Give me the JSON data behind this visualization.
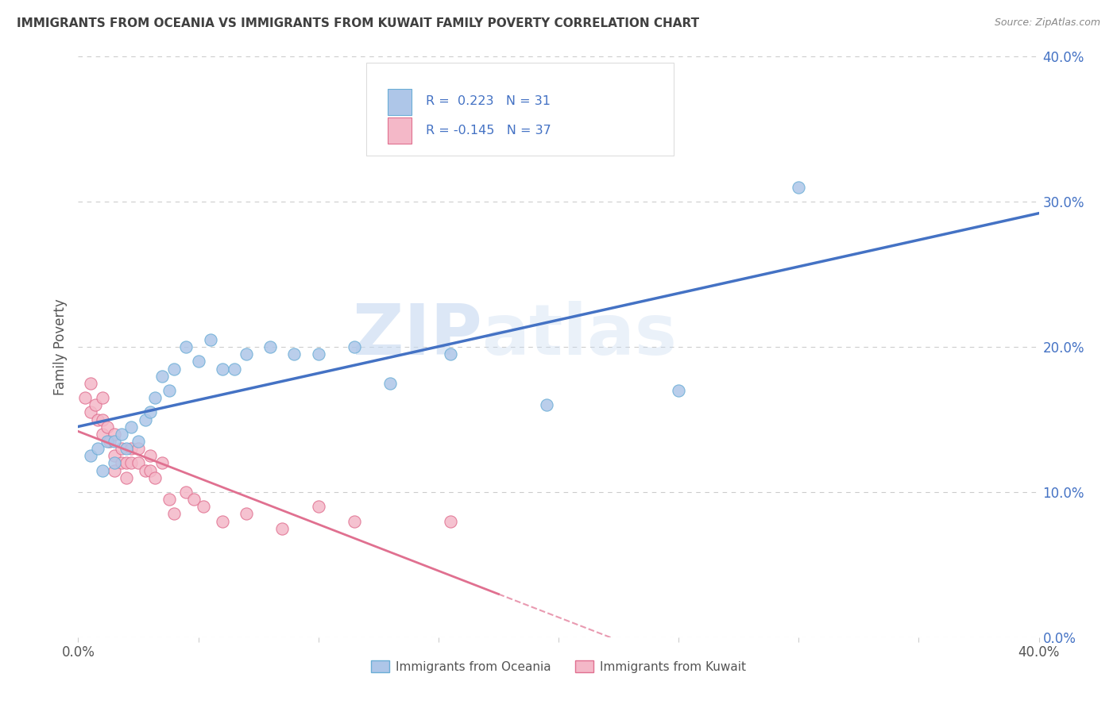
{
  "title": "IMMIGRANTS FROM OCEANIA VS IMMIGRANTS FROM KUWAIT FAMILY POVERTY CORRELATION CHART",
  "source": "Source: ZipAtlas.com",
  "ylabel": "Family Poverty",
  "xlim": [
    0.0,
    0.4
  ],
  "ylim": [
    0.0,
    0.4
  ],
  "oceania_color": "#aec6e8",
  "oceania_edge": "#6baed6",
  "kuwait_color": "#f4b8c8",
  "kuwait_edge": "#e07090",
  "line_oceania": "#4472c4",
  "line_kuwait": "#e07090",
  "R_oceania": 0.223,
  "N_oceania": 31,
  "R_kuwait": -0.145,
  "N_kuwait": 37,
  "legend_label_oceania": "Immigrants from Oceania",
  "legend_label_kuwait": "Immigrants from Kuwait",
  "oceania_x": [
    0.005,
    0.008,
    0.01,
    0.012,
    0.015,
    0.015,
    0.018,
    0.02,
    0.022,
    0.025,
    0.028,
    0.03,
    0.032,
    0.035,
    0.038,
    0.04,
    0.045,
    0.05,
    0.055,
    0.06,
    0.065,
    0.07,
    0.08,
    0.09,
    0.1,
    0.115,
    0.13,
    0.155,
    0.195,
    0.25,
    0.3
  ],
  "oceania_y": [
    0.125,
    0.13,
    0.115,
    0.135,
    0.135,
    0.12,
    0.14,
    0.13,
    0.145,
    0.135,
    0.15,
    0.155,
    0.165,
    0.18,
    0.17,
    0.185,
    0.2,
    0.19,
    0.205,
    0.185,
    0.185,
    0.195,
    0.2,
    0.195,
    0.195,
    0.2,
    0.175,
    0.195,
    0.16,
    0.17,
    0.31
  ],
  "kuwait_x": [
    0.003,
    0.005,
    0.005,
    0.007,
    0.008,
    0.01,
    0.01,
    0.01,
    0.012,
    0.013,
    0.015,
    0.015,
    0.015,
    0.018,
    0.018,
    0.02,
    0.02,
    0.022,
    0.022,
    0.025,
    0.025,
    0.028,
    0.03,
    0.03,
    0.032,
    0.035,
    0.038,
    0.04,
    0.045,
    0.048,
    0.052,
    0.06,
    0.07,
    0.085,
    0.1,
    0.115,
    0.155
  ],
  "kuwait_y": [
    0.165,
    0.175,
    0.155,
    0.16,
    0.15,
    0.165,
    0.15,
    0.14,
    0.145,
    0.135,
    0.14,
    0.125,
    0.115,
    0.13,
    0.12,
    0.12,
    0.11,
    0.13,
    0.12,
    0.13,
    0.12,
    0.115,
    0.115,
    0.125,
    0.11,
    0.12,
    0.095,
    0.085,
    0.1,
    0.095,
    0.09,
    0.08,
    0.085,
    0.075,
    0.09,
    0.08,
    0.08
  ],
  "watermark_zip": "ZIP",
  "watermark_atlas": "atlas",
  "background_color": "#ffffff",
  "title_color": "#404040",
  "source_color": "#888888",
  "grid_color": "#cccccc",
  "tick_label_color": "#4472c4"
}
